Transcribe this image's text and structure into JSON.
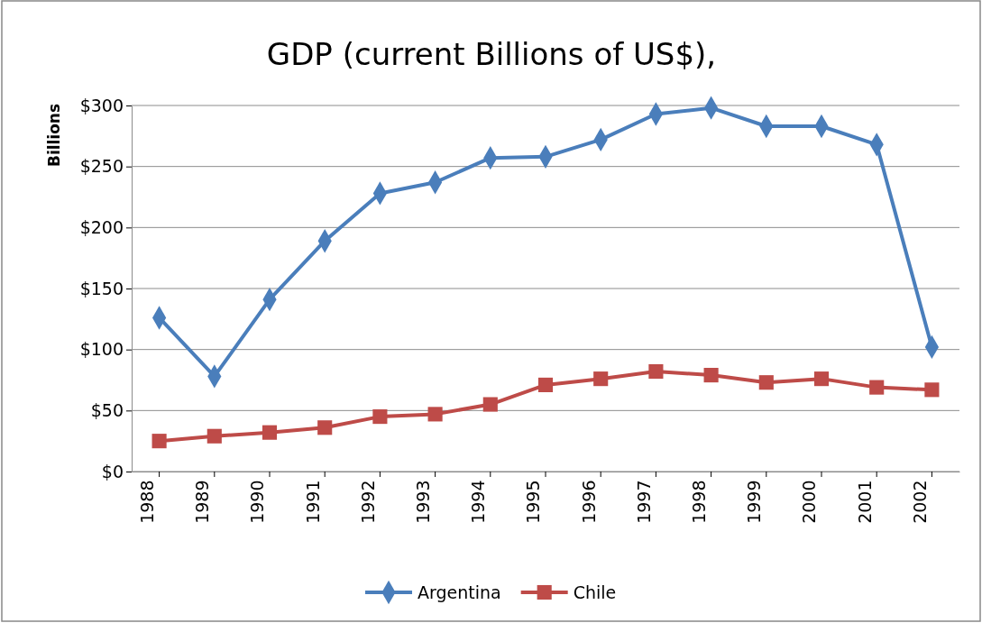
{
  "chart_data": {
    "type": "line",
    "title": "GDP (current Billions of US$),",
    "ylabel": "Billions",
    "categories": [
      "1988",
      "1989",
      "1990",
      "1991",
      "1992",
      "1993",
      "1994",
      "1995",
      "1996",
      "1997",
      "1998",
      "1999",
      "2000",
      "2001",
      "2002"
    ],
    "series": [
      {
        "name": "Argentina",
        "color": "#4a7ebb",
        "marker": "diamond",
        "values": [
          126,
          78,
          141,
          189,
          228,
          237,
          257,
          258,
          272,
          293,
          298,
          283,
          283,
          268,
          102
        ]
      },
      {
        "name": "Chile",
        "color": "#be4b48",
        "marker": "square",
        "values": [
          25,
          29,
          32,
          36,
          45,
          47,
          55,
          71,
          76,
          82,
          79,
          73,
          76,
          69,
          67
        ]
      }
    ],
    "ylim": [
      0,
      300
    ],
    "yticks": [
      {
        "value": 0,
        "label": "$0"
      },
      {
        "value": 50,
        "label": "$50"
      },
      {
        "value": 100,
        "label": "$100"
      },
      {
        "value": 150,
        "label": "$150"
      },
      {
        "value": 200,
        "label": "$200"
      },
      {
        "value": 250,
        "label": "$250"
      },
      {
        "value": 300,
        "label": "$300"
      }
    ],
    "grid": "y",
    "legend": "bottom",
    "line_style": "solid"
  }
}
